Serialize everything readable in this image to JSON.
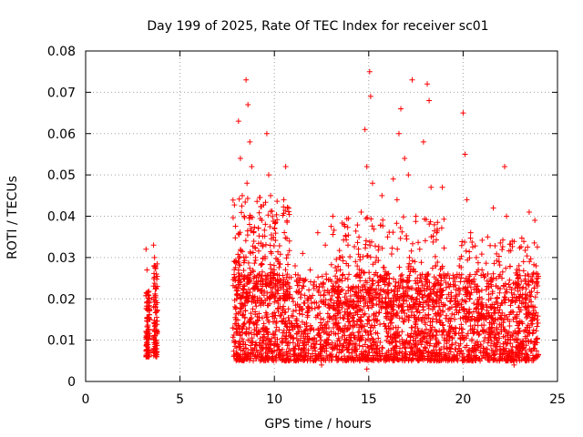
{
  "chart_data": {
    "type": "scatter",
    "title": "Day 199 of 2025, Rate Of TEC Index for receiver sc01",
    "xlabel": "GPS time / hours",
    "ylabel": "ROTI / TECUs",
    "xlim": [
      0,
      25
    ],
    "ylim": [
      0,
      0.08
    ],
    "x_ticks": [
      0,
      5,
      10,
      15,
      20,
      25
    ],
    "x_tick_labels": [
      "0",
      "5",
      "10",
      "15",
      "20",
      "25"
    ],
    "y_ticks": [
      0,
      0.01,
      0.02,
      0.03,
      0.04,
      0.05,
      0.06,
      0.07,
      0.08
    ],
    "y_tick_labels": [
      "0",
      "0.01",
      "0.02",
      "0.03",
      "0.04",
      "0.05",
      "0.06",
      "0.07",
      "0.08"
    ],
    "grid": true,
    "legend": "none",
    "marker": "+",
    "color": "#ff0000",
    "series": [
      {
        "points": [
          [
            3.2,
            0.032
          ],
          [
            3.25,
            0.027
          ],
          [
            3.3,
            0.021
          ],
          [
            3.35,
            0.019
          ],
          [
            3.4,
            0.015
          ],
          [
            3.3,
            0.012
          ],
          [
            3.25,
            0.009
          ],
          [
            3.35,
            0.007
          ],
          [
            3.2,
            0.006
          ],
          [
            3.4,
            0.011
          ],
          [
            3.6,
            0.033
          ],
          [
            3.65,
            0.03
          ],
          [
            3.7,
            0.028
          ],
          [
            3.75,
            0.026
          ],
          [
            3.8,
            0.023
          ],
          [
            3.7,
            0.018
          ],
          [
            3.65,
            0.014
          ],
          [
            3.75,
            0.01
          ],
          [
            3.6,
            0.008
          ],
          [
            3.8,
            0.012
          ],
          [
            7.9,
            0.025
          ],
          [
            8.0,
            0.021
          ],
          [
            8.1,
            0.063
          ],
          [
            8.2,
            0.054
          ],
          [
            8.3,
            0.045
          ],
          [
            8.4,
            0.04
          ],
          [
            8.5,
            0.073
          ],
          [
            8.55,
            0.048
          ],
          [
            8.6,
            0.067
          ],
          [
            8.7,
            0.058
          ],
          [
            8.8,
            0.052
          ],
          [
            8.9,
            0.036
          ],
          [
            9.0,
            0.03
          ],
          [
            9.2,
            0.026
          ],
          [
            9.4,
            0.033
          ],
          [
            9.6,
            0.06
          ],
          [
            9.7,
            0.05
          ],
          [
            9.8,
            0.045
          ],
          [
            10.0,
            0.037
          ],
          [
            10.2,
            0.029
          ],
          [
            10.5,
            0.044
          ],
          [
            10.6,
            0.052
          ],
          [
            10.8,
            0.034
          ],
          [
            11.1,
            0.028
          ],
          [
            11.5,
            0.031
          ],
          [
            11.9,
            0.027
          ],
          [
            12.3,
            0.036
          ],
          [
            12.7,
            0.033
          ],
          [
            13.1,
            0.04
          ],
          [
            13.5,
            0.03
          ],
          [
            13.9,
            0.033
          ],
          [
            14.3,
            0.029
          ],
          [
            14.6,
            0.041
          ],
          [
            14.8,
            0.061
          ],
          [
            14.9,
            0.052
          ],
          [
            15.05,
            0.075
          ],
          [
            15.1,
            0.069
          ],
          [
            15.2,
            0.048
          ],
          [
            15.4,
            0.03
          ],
          [
            15.7,
            0.045
          ],
          [
            16.0,
            0.035
          ],
          [
            16.3,
            0.049
          ],
          [
            16.5,
            0.044
          ],
          [
            16.6,
            0.06
          ],
          [
            16.7,
            0.066
          ],
          [
            16.9,
            0.054
          ],
          [
            17.1,
            0.05
          ],
          [
            17.3,
            0.073
          ],
          [
            17.5,
            0.04
          ],
          [
            17.7,
            0.032
          ],
          [
            17.9,
            0.058
          ],
          [
            18.1,
            0.072
          ],
          [
            18.2,
            0.068
          ],
          [
            18.3,
            0.047
          ],
          [
            18.6,
            0.036
          ],
          [
            18.9,
            0.047
          ],
          [
            19.2,
            0.026
          ],
          [
            19.5,
            0.023
          ],
          [
            19.8,
            0.028
          ],
          [
            20.0,
            0.065
          ],
          [
            20.1,
            0.055
          ],
          [
            20.2,
            0.044
          ],
          [
            20.4,
            0.036
          ],
          [
            20.7,
            0.03
          ],
          [
            21.0,
            0.027
          ],
          [
            21.3,
            0.035
          ],
          [
            21.6,
            0.042
          ],
          [
            21.9,
            0.029
          ],
          [
            22.2,
            0.052
          ],
          [
            22.3,
            0.04
          ],
          [
            22.6,
            0.034
          ],
          [
            22.9,
            0.025
          ],
          [
            23.2,
            0.029
          ],
          [
            23.5,
            0.041
          ],
          [
            23.8,
            0.039
          ],
          [
            23.95,
            0.026
          ],
          [
            8.0,
            0.012
          ],
          [
            8.3,
            0.016
          ],
          [
            8.6,
            0.01
          ],
          [
            9.0,
            0.019
          ],
          [
            9.4,
            0.013
          ],
          [
            9.8,
            0.008
          ],
          [
            10.2,
            0.022
          ],
          [
            10.6,
            0.014
          ],
          [
            11.0,
            0.017
          ],
          [
            11.4,
            0.011
          ],
          [
            11.8,
            0.02
          ],
          [
            12.2,
            0.009
          ],
          [
            12.6,
            0.015
          ],
          [
            13.0,
            0.012
          ],
          [
            13.4,
            0.018
          ],
          [
            13.8,
            0.01
          ],
          [
            14.2,
            0.016
          ],
          [
            14.6,
            0.013
          ],
          [
            15.0,
            0.007
          ],
          [
            15.4,
            0.021
          ],
          [
            15.8,
            0.014
          ],
          [
            16.2,
            0.019
          ],
          [
            16.6,
            0.011
          ],
          [
            17.0,
            0.024
          ],
          [
            17.4,
            0.016
          ],
          [
            17.8,
            0.012
          ],
          [
            18.2,
            0.02
          ],
          [
            18.6,
            0.015
          ],
          [
            19.0,
            0.01
          ],
          [
            19.4,
            0.018
          ],
          [
            19.8,
            0.008
          ],
          [
            20.2,
            0.017
          ],
          [
            20.6,
            0.012
          ],
          [
            21.0,
            0.019
          ],
          [
            21.4,
            0.013
          ],
          [
            21.8,
            0.01
          ],
          [
            22.2,
            0.016
          ],
          [
            22.6,
            0.007
          ],
          [
            23.0,
            0.014
          ],
          [
            23.4,
            0.011
          ],
          [
            23.8,
            0.018
          ],
          [
            12.5,
            0.004
          ],
          [
            14.9,
            0.003
          ],
          [
            18.6,
            0.005
          ],
          [
            22.7,
            0.004
          ],
          [
            9.3,
            0.006
          ],
          [
            16.4,
            0.006
          ],
          [
            20.9,
            0.005
          ]
        ]
      }
    ],
    "clusters": [
      {
        "x": [
          3.2,
          3.4
        ],
        "y": [
          0.006,
          0.022
        ],
        "n": 90
      },
      {
        "x": [
          3.6,
          3.8
        ],
        "y": [
          0.006,
          0.029
        ],
        "n": 90
      },
      {
        "x": [
          7.8,
          24.0
        ],
        "y": [
          0.005,
          0.026
        ],
        "n": 2600
      },
      {
        "x": [
          7.8,
          10.8
        ],
        "y": [
          0.02,
          0.045
        ],
        "n": 260
      },
      {
        "x": [
          13.0,
          19.0
        ],
        "y": [
          0.018,
          0.04
        ],
        "n": 280
      },
      {
        "x": [
          19.8,
          24.0
        ],
        "y": [
          0.015,
          0.035
        ],
        "n": 160
      }
    ]
  }
}
